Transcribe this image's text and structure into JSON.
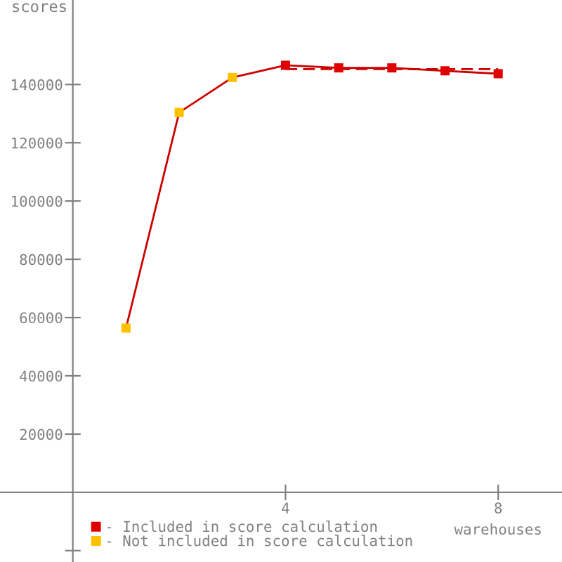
{
  "chart_data": {
    "type": "line",
    "xlabel": "warehouses",
    "ylabel": "scores",
    "xlim": [
      -1.37,
      9.2
    ],
    "ylim": [
      -23900,
      169000
    ],
    "xticks": [
      4,
      8
    ],
    "yticks": [
      {
        "value": -20000,
        "label": null
      },
      20000,
      40000,
      60000,
      80000,
      100000,
      120000,
      140000
    ],
    "grid": false,
    "legend": "bottom left",
    "series": [
      {
        "color": "#cc0000",
        "x": [
          1,
          2,
          3,
          4,
          5,
          6,
          7,
          8
        ],
        "values": [
          56400,
          130400,
          142400,
          146600,
          145700,
          145700,
          144700,
          143700
        ],
        "marker": "none",
        "line_style": "solid"
      },
      {
        "color": "#cc0000",
        "x": [
          4,
          8
        ],
        "values": [
          145300,
          145300
        ],
        "marker": "none",
        "line_style": "dashed"
      },
      {
        "type": "scatter",
        "name": "- Included in score calculation",
        "color": "#e00000",
        "x": [
          4,
          5,
          6,
          7,
          8
        ],
        "values": [
          146600,
          145700,
          145700,
          144700,
          143700
        ],
        "marker": "square"
      },
      {
        "type": "scatter",
        "name": "- Not included in score calculation",
        "color": "#ffc000",
        "x": [
          1,
          2,
          3
        ],
        "values": [
          56400,
          130400,
          142400
        ],
        "marker": "square"
      }
    ]
  }
}
